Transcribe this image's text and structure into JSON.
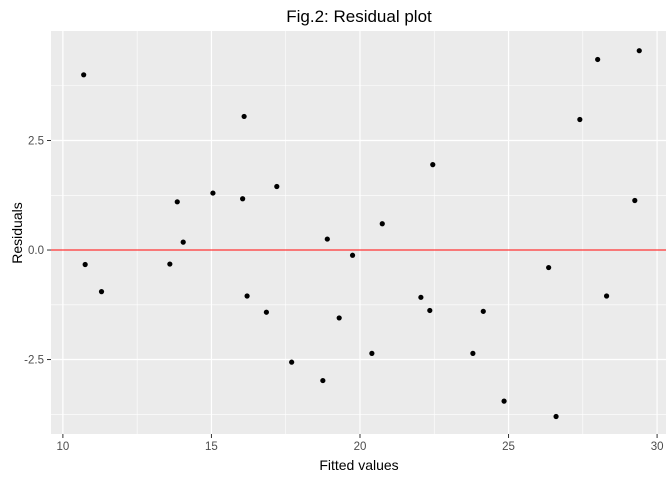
{
  "chart_data": {
    "type": "scatter",
    "title": "Fig.2: Residual plot",
    "xlabel": "Fitted values",
    "ylabel": "Residuals",
    "xlim": [
      9.6,
      30.3
    ],
    "ylim": [
      -4.2,
      5.0
    ],
    "x_ticks": [
      10,
      15,
      20,
      25,
      30
    ],
    "x_tick_labels": [
      "10",
      "15",
      "20",
      "25",
      "30"
    ],
    "y_ticks": [
      -2.5,
      0.0,
      2.5
    ],
    "y_tick_labels": [
      "-2.5",
      "0.0",
      "2.5"
    ],
    "grid": true,
    "legend": "none",
    "reference_line": {
      "y": 0,
      "color": "#ff0000"
    },
    "panel_color": "#ebebeb",
    "grid_color": "#ffffff",
    "point_color": "#000000",
    "points": [
      {
        "x": 10.7,
        "y": 4.0
      },
      {
        "x": 10.75,
        "y": -0.33
      },
      {
        "x": 11.3,
        "y": -0.95
      },
      {
        "x": 13.6,
        "y": -0.32
      },
      {
        "x": 13.85,
        "y": 1.1
      },
      {
        "x": 14.05,
        "y": 0.18
      },
      {
        "x": 15.05,
        "y": 1.3
      },
      {
        "x": 16.05,
        "y": 1.17
      },
      {
        "x": 16.1,
        "y": 3.05
      },
      {
        "x": 16.2,
        "y": -1.05
      },
      {
        "x": 16.85,
        "y": -1.42
      },
      {
        "x": 17.2,
        "y": 1.45
      },
      {
        "x": 17.7,
        "y": -2.56
      },
      {
        "x": 18.75,
        "y": -2.98
      },
      {
        "x": 18.9,
        "y": 0.25
      },
      {
        "x": 19.3,
        "y": -1.55
      },
      {
        "x": 19.75,
        "y": -0.12
      },
      {
        "x": 20.4,
        "y": -2.36
      },
      {
        "x": 20.75,
        "y": 0.6
      },
      {
        "x": 22.05,
        "y": -1.08
      },
      {
        "x": 22.35,
        "y": -1.38
      },
      {
        "x": 22.45,
        "y": 1.95
      },
      {
        "x": 23.8,
        "y": -2.36
      },
      {
        "x": 24.15,
        "y": -1.4
      },
      {
        "x": 24.85,
        "y": -3.45
      },
      {
        "x": 26.35,
        "y": -0.4
      },
      {
        "x": 26.6,
        "y": -3.8
      },
      {
        "x": 27.4,
        "y": 2.98
      },
      {
        "x": 28.0,
        "y": 4.35
      },
      {
        "x": 28.3,
        "y": -1.05
      },
      {
        "x": 29.25,
        "y": 1.13
      },
      {
        "x": 29.4,
        "y": 4.55
      }
    ]
  }
}
